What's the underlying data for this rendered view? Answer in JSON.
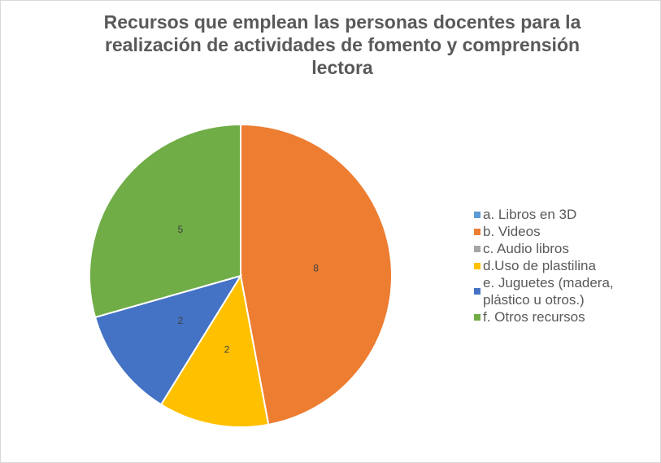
{
  "chart_data": {
    "type": "pie",
    "title": "Recursos que emplean las personas docentes para la realización de actividades de fomento y comprensión lectora",
    "categories": [
      "a. Libros en 3D",
      "b. Videos",
      "c. Audio libros",
      "d.Uso de plastilina",
      "e. Juguetes (madera, plástico u otros.)",
      "f. Otros recursos"
    ],
    "values": [
      0,
      8,
      0,
      2,
      2,
      5
    ],
    "colors": [
      "#5b9bd5",
      "#ed7d31",
      "#a5a5a5",
      "#ffc000",
      "#4472c4",
      "#70ad47"
    ],
    "legend": "right"
  }
}
